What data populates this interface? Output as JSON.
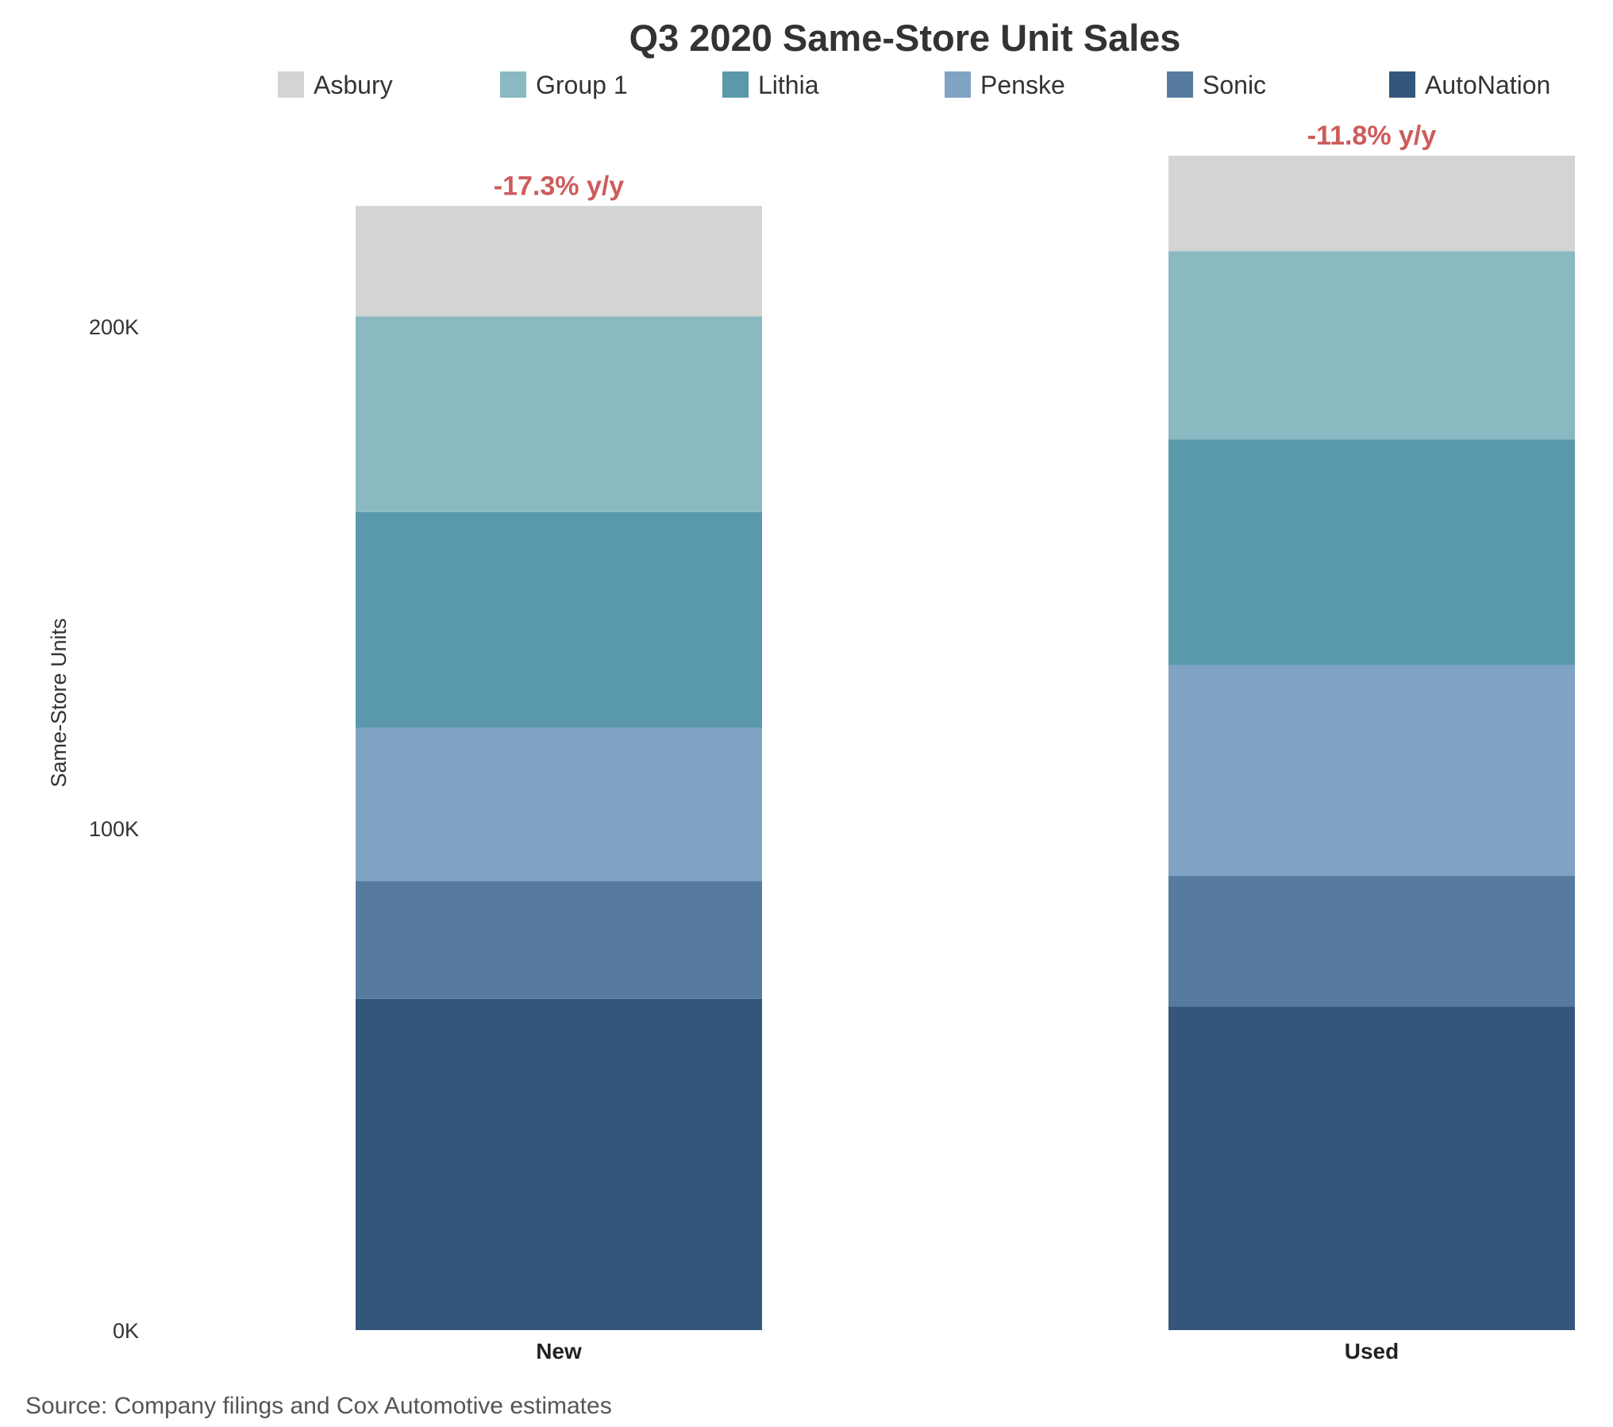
{
  "chart_data": {
    "type": "bar",
    "stacked": true,
    "title": "Q3 2020 Same-Store Unit Sales",
    "xlabel": "",
    "ylabel": "Same-Store Units",
    "categories": [
      "New",
      "Used"
    ],
    "ylim": [
      0,
      230000
    ],
    "yticks": [
      {
        "value": 0,
        "label": "0K"
      },
      {
        "value": 100000,
        "label": "100K"
      },
      {
        "value": 200000,
        "label": "200K"
      }
    ],
    "grid": false,
    "legend_position": "top",
    "series": [
      {
        "name": "AutoNation",
        "color": "#34567b",
        "values": [
          66000,
          64500
        ]
      },
      {
        "name": "Sonic",
        "color": "#567b9f",
        "values": [
          23500,
          26000
        ]
      },
      {
        "name": "Penske",
        "color": "#80a3c4",
        "values": [
          30500,
          42000
        ]
      },
      {
        "name": "Lithia",
        "color": "#5a98ac",
        "values": [
          43000,
          45000
        ]
      },
      {
        "name": "Group 1",
        "color": "#8ab9c2",
        "values": [
          39000,
          37500
        ]
      },
      {
        "name": "Asbury",
        "color": "#d3d5d3",
        "values": [
          22000,
          19000
        ]
      }
    ],
    "legend_order": [
      "Asbury",
      "Group 1",
      "Lithia",
      "Penske",
      "Sonic",
      "AutoNation"
    ],
    "annotations": [
      {
        "category": "New",
        "text": "-17.3% y/y"
      },
      {
        "category": "Used",
        "text": "-11.8% y/y"
      }
    ],
    "annotation_color": "#cd5c5c"
  },
  "source": "Source: Company filings and Cox Automotive estimates"
}
